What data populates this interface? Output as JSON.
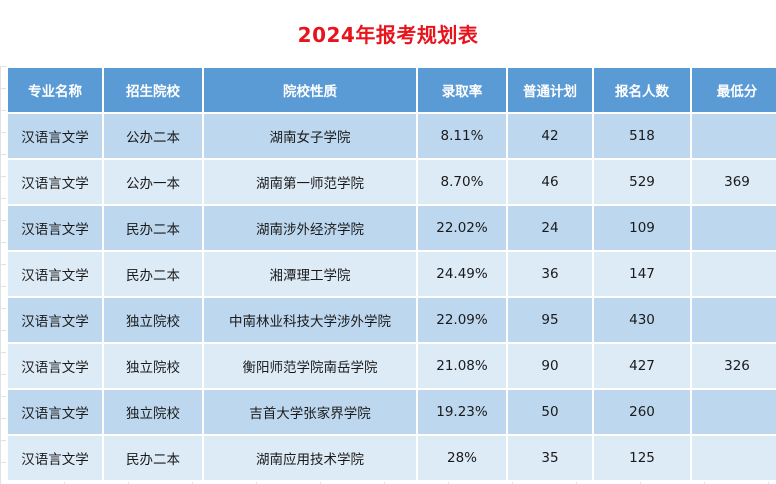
{
  "title": "2024年报考规划表",
  "table": {
    "headers": [
      "专业名称",
      "招生院校",
      "院校性质",
      "录取率",
      "普通计划",
      "报名人数",
      "最低分"
    ],
    "rows": [
      [
        "汉语言文学",
        "公办二本",
        "湖南女子学院",
        "8.11%",
        "42",
        "518",
        ""
      ],
      [
        "汉语言文学",
        "公办一本",
        "湖南第一师范学院",
        "8.70%",
        "46",
        "529",
        "369"
      ],
      [
        "汉语言文学",
        "民办二本",
        "湖南涉外经济学院",
        "22.02%",
        "24",
        "109",
        ""
      ],
      [
        "汉语言文学",
        "民办二本",
        "湘潭理工学院",
        "24.49%",
        "36",
        "147",
        ""
      ],
      [
        "汉语言文学",
        "独立院校",
        "中南林业科技大学涉外学院",
        "22.09%",
        "95",
        "430",
        ""
      ],
      [
        "汉语言文学",
        "独立院校",
        "衡阳师范学院南岳学院",
        "21.08%",
        "90",
        "427",
        "326"
      ],
      [
        "汉语言文学",
        "独立院校",
        "吉首大学张家界学院",
        "19.23%",
        "50",
        "260",
        ""
      ],
      [
        "汉语言文学",
        "民办二本",
        "湖南应用技术学院",
        "28%",
        "35",
        "125",
        ""
      ]
    ]
  },
  "colors": {
    "title": "#e8141d",
    "header_bg": "#5b9bd5",
    "row_odd": "#bdd7ee",
    "row_even": "#ddebf7"
  }
}
